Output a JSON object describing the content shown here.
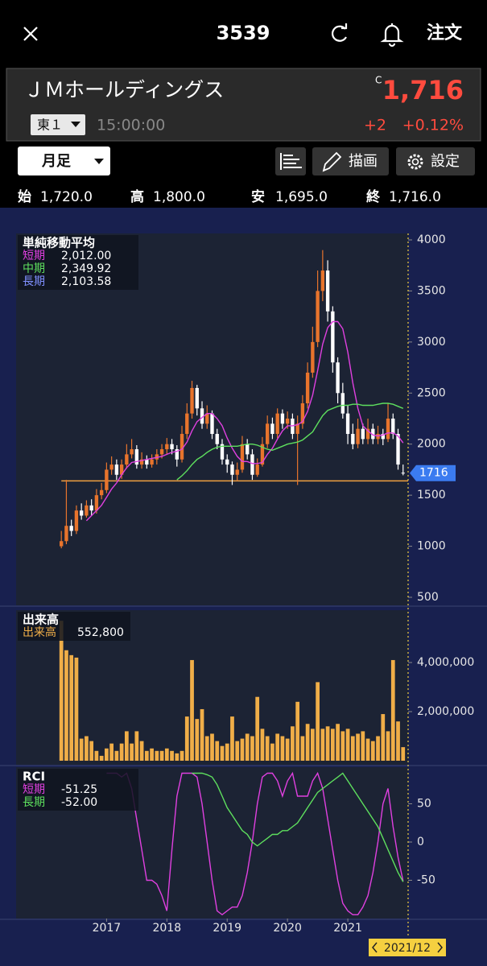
{
  "header": {
    "ticker": "3539",
    "order": "注文"
  },
  "quote": {
    "name": "ＪＭホールディングス",
    "flag": "C",
    "price": "1,716",
    "market": "東１",
    "time": "15:00:00",
    "change": "+2",
    "change_pct": "+0.12%"
  },
  "toolbar": {
    "period": "月足",
    "draw": "描画",
    "settings": "設定"
  },
  "ohlc": [
    {
      "label": "始",
      "value": "1,720.0"
    },
    {
      "label": "高",
      "value": "1,800.0"
    },
    {
      "label": "安",
      "value": "1,695.0"
    },
    {
      "label": "終",
      "value": "1,716.0"
    }
  ],
  "cursor": "2021/12",
  "chart_data": [
    {
      "type": "candlestick",
      "title": "単純移動平均",
      "up_color": "#e8742c",
      "down_color": "#ffffff",
      "open": [
        1000,
        1050,
        1200,
        1150,
        1350,
        1300,
        1400,
        1350,
        1500,
        1550,
        1750,
        1800,
        1700,
        1800,
        1900,
        1950,
        1800,
        1850,
        1800,
        1850,
        1900,
        1950,
        2000,
        1950,
        1850,
        2100,
        2300,
        2550,
        2350,
        2200,
        2300,
        2100,
        2000,
        1850,
        1800,
        1700,
        1750,
        2000,
        1900,
        1700,
        1800,
        2000,
        2200,
        2100,
        2300,
        2200,
        2250,
        2100,
        2200,
        2400,
        2700,
        3000,
        3500,
        3700,
        3300,
        2800,
        2500,
        2300,
        2100,
        2000,
        2150,
        2050,
        2150,
        2050,
        2100,
        2050,
        2250,
        2100,
        1720
      ],
      "high": [
        1150,
        1650,
        1260,
        1400,
        1420,
        1450,
        1460,
        1560,
        1620,
        1820,
        1880,
        1850,
        1850,
        2000,
        2050,
        1990,
        1920,
        1890,
        1900,
        1950,
        2000,
        2060,
        2050,
        1990,
        2180,
        2400,
        2620,
        2580,
        2420,
        2380,
        2330,
        2150,
        2050,
        1900,
        1830,
        1820,
        2080,
        2050,
        1950,
        1860,
        2070,
        2280,
        2260,
        2350,
        2340,
        2320,
        2300,
        2280,
        2480,
        2800,
        3150,
        3700,
        3900,
        3800,
        3350,
        2850,
        2600,
        2380,
        2200,
        2250,
        2200,
        2250,
        2200,
        2180,
        2150,
        2400,
        2300,
        2150,
        1800
      ],
      "low": [
        980,
        1020,
        1100,
        1120,
        1260,
        1280,
        1300,
        1320,
        1460,
        1520,
        1700,
        1650,
        1660,
        1760,
        1860,
        1760,
        1760,
        1760,
        1770,
        1800,
        1860,
        1900,
        1900,
        1780,
        1820,
        2050,
        2250,
        2280,
        2150,
        2150,
        2050,
        1950,
        1800,
        1720,
        1600,
        1640,
        1720,
        1850,
        1650,
        1680,
        1780,
        1960,
        2050,
        2060,
        2150,
        2150,
        2050,
        1600,
        2150,
        2350,
        2650,
        2950,
        3400,
        3200,
        2700,
        2400,
        2250,
        2000,
        1950,
        1960,
        2000,
        2000,
        2000,
        2000,
        1990,
        2020,
        2050,
        1750,
        1695
      ],
      "close": [
        1050,
        1200,
        1150,
        1350,
        1300,
        1400,
        1350,
        1500,
        1550,
        1750,
        1800,
        1700,
        1800,
        1900,
        1950,
        1800,
        1850,
        1800,
        1850,
        1900,
        1950,
        2000,
        1950,
        1850,
        2100,
        2300,
        2550,
        2350,
        2200,
        2300,
        2100,
        2000,
        1850,
        1800,
        1700,
        1750,
        2000,
        1900,
        1700,
        1800,
        2000,
        2200,
        2100,
        2300,
        2200,
        2250,
        2100,
        2200,
        2400,
        2700,
        3000,
        3500,
        3700,
        3300,
        2800,
        2500,
        2300,
        2100,
        2000,
        2150,
        2050,
        2150,
        2050,
        2100,
        2050,
        2250,
        2100,
        1800,
        1716
      ],
      "series": [
        {
          "name": "短期",
          "color": "#e040e0",
          "values": [
            null,
            null,
            null,
            null,
            null,
            1250,
            1300,
            1350,
            1400,
            1480,
            1560,
            1620,
            1700,
            1770,
            1820,
            1830,
            1840,
            1850,
            1860,
            1870,
            1880,
            1900,
            1920,
            1930,
            1950,
            2020,
            2130,
            2220,
            2260,
            2300,
            2300,
            2250,
            2180,
            2060,
            1960,
            1880,
            1830,
            1830,
            1810,
            1810,
            1820,
            1900,
            1960,
            2050,
            2130,
            2180,
            2180,
            2190,
            2220,
            2320,
            2480,
            2720,
            2980,
            3140,
            3200,
            3200,
            3130,
            2900,
            2600,
            2350,
            2180,
            2130,
            2090,
            2080,
            2090,
            2110,
            2110,
            2080,
            2012
          ]
        },
        {
          "name": "中期",
          "color": "#5ee05e",
          "values": [
            null,
            null,
            null,
            null,
            null,
            null,
            null,
            null,
            null,
            null,
            null,
            null,
            null,
            null,
            null,
            null,
            null,
            null,
            null,
            null,
            null,
            null,
            null,
            1650,
            1690,
            1740,
            1800,
            1850,
            1880,
            1920,
            1950,
            1970,
            1980,
            1980,
            1980,
            1980,
            1990,
            2000,
            2000,
            1990,
            1970,
            1950,
            1940,
            1960,
            1980,
            2000,
            2010,
            2020,
            2040,
            2080,
            2120,
            2200,
            2280,
            2330,
            2350,
            2370,
            2380,
            2380,
            2390,
            2390,
            2380,
            2380,
            2380,
            2390,
            2400,
            2400,
            2390,
            2370,
            2349.92
          ]
        }
      ],
      "legend": [
        {
          "name": "短期",
          "color": "#e040e0",
          "value": 2012.0,
          "label": "2,012.00"
        },
        {
          "name": "中期",
          "color": "#5ee05e",
          "value": 2349.92,
          "label": "2,349.92"
        },
        {
          "name": "長期",
          "color": "#8090ff",
          "value": 2103.58,
          "label": "2,103.58"
        }
      ],
      "trendline": 1640,
      "trendline_color": "#f0a040",
      "xlim": [
        -9,
        69
      ],
      "ylim": [
        500,
        4000
      ],
      "yticks": [
        500,
        1000,
        1500,
        2000,
        2500,
        3000,
        3500,
        4000
      ]
    },
    {
      "type": "bar",
      "title": "出来高",
      "series": [
        {
          "name": "出来高",
          "color": "#f0ae48",
          "values": [
            5700000,
            4500000,
            4300000,
            4200000,
            900000,
            1000000,
            800000,
            400000,
            200000,
            500000,
            700000,
            400000,
            700000,
            1200000,
            700000,
            1200000,
            800000,
            400000,
            500000,
            400000,
            400000,
            500000,
            400000,
            300000,
            400000,
            1800000,
            4100000,
            1700000,
            2100000,
            1000000,
            1100000,
            800000,
            600000,
            700000,
            1800000,
            800000,
            900000,
            1100000,
            1000000,
            2600000,
            1300000,
            1000000,
            700000,
            1100000,
            1000000,
            900000,
            1400000,
            2400000,
            1000000,
            1500000,
            1300000,
            3200000,
            1300000,
            1400000,
            1300000,
            1500000,
            1200000,
            1300000,
            1000000,
            1100000,
            1200000,
            900000,
            800000,
            1000000,
            1900000,
            1200000,
            4100000,
            1600000,
            552800
          ]
        }
      ],
      "legend": [
        {
          "name": "出来高",
          "color": "#f0ae48",
          "value": 552800,
          "label": "552,800"
        }
      ],
      "xlim": [
        -9,
        69
      ],
      "ylim": [
        0,
        6000000
      ],
      "yticks": [
        {
          "value": 2000000,
          "label": "2,000,000"
        },
        {
          "value": 4000000,
          "label": "4,000,000"
        }
      ]
    },
    {
      "type": "line",
      "title": "RCI",
      "series": [
        {
          "name": "短期",
          "color": "#e040e0",
          "values": [
            null,
            null,
            null,
            null,
            null,
            null,
            null,
            null,
            null,
            90,
            90,
            90,
            85,
            90,
            70,
            30,
            -10,
            -50,
            -50,
            -55,
            -70,
            -90,
            -10,
            60,
            90,
            90,
            90,
            85,
            50,
            0,
            -50,
            -90,
            -95,
            -90,
            -85,
            -85,
            -70,
            -40,
            0,
            50,
            85,
            90,
            90,
            80,
            60,
            80,
            90,
            60,
            60,
            60,
            80,
            90,
            70,
            30,
            -10,
            -50,
            -80,
            -90,
            -95,
            -95,
            -85,
            -70,
            -40,
            0,
            50,
            70,
            20,
            -20,
            -51.25
          ]
        },
        {
          "name": "長期",
          "color": "#5ee05e",
          "values": [
            null,
            null,
            null,
            null,
            null,
            null,
            null,
            null,
            null,
            null,
            null,
            null,
            null,
            null,
            null,
            null,
            null,
            null,
            null,
            null,
            null,
            null,
            null,
            null,
            null,
            null,
            90,
            90,
            90,
            88,
            85,
            75,
            60,
            45,
            35,
            25,
            15,
            10,
            0,
            -5,
            0,
            5,
            10,
            10,
            15,
            15,
            20,
            25,
            35,
            45,
            55,
            65,
            70,
            75,
            80,
            85,
            90,
            80,
            70,
            60,
            50,
            40,
            30,
            20,
            5,
            -10,
            -25,
            -40,
            -52
          ]
        }
      ],
      "legend": [
        {
          "name": "短期",
          "color": "#e040e0",
          "value": -51.25,
          "label": "-51.25"
        },
        {
          "name": "長期",
          "color": "#5ee05e",
          "value": -52.0,
          "label": "-52.00"
        }
      ],
      "xlim": [
        -9,
        69
      ],
      "ylim": [
        -100,
        100
      ],
      "yticks": [
        -50,
        0,
        50
      ],
      "xticks": [
        {
          "value": 9,
          "label": "2017"
        },
        {
          "value": 21,
          "label": "2018"
        },
        {
          "value": 33,
          "label": "2019"
        },
        {
          "value": 45,
          "label": "2020"
        },
        {
          "value": 57,
          "label": "2021"
        }
      ]
    }
  ]
}
